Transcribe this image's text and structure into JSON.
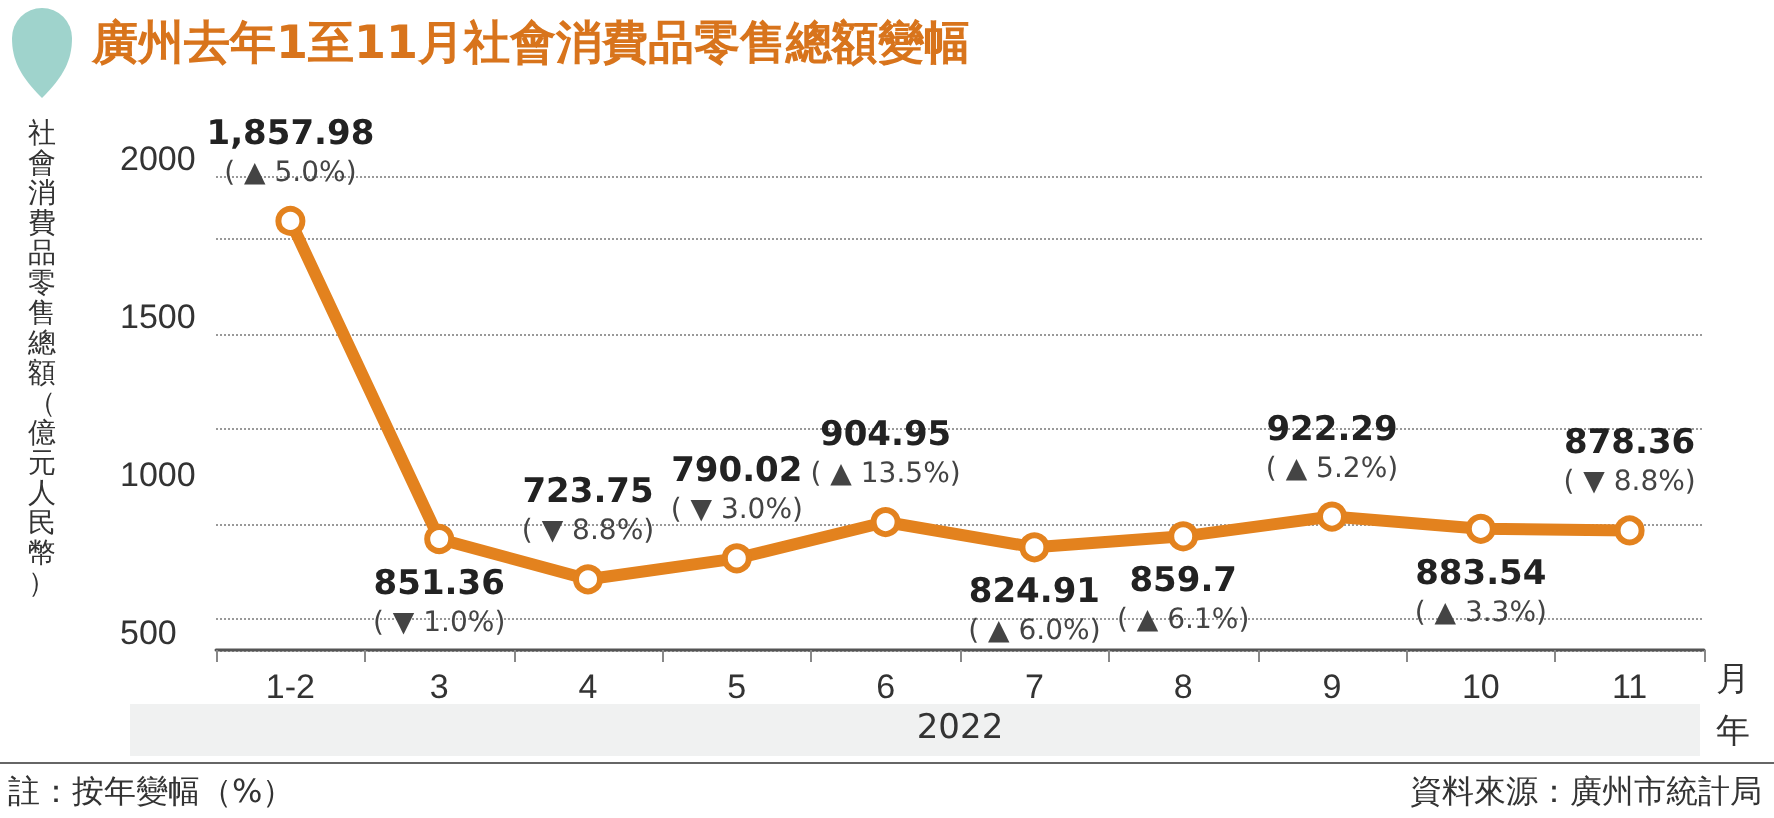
{
  "chart_data": {
    "type": "line",
    "title": "廣州去年1至11月社會消費品零售總額變幅",
    "ylabel": "社會消費品零售總額（億元人民幣）",
    "xlabel": "月",
    "categories": [
      "1-2",
      "3",
      "4",
      "5",
      "6",
      "7",
      "8",
      "9",
      "10",
      "11"
    ],
    "series": [
      {
        "color": "#e3821e",
        "values": [
          1857.98,
          851.36,
          723.75,
          790.02,
          904.95,
          824.91,
          859.7,
          922.29,
          883.54,
          878.36
        ],
        "value_labels": [
          "1,857.98\n( ▲ 5.0%)",
          "851.36\n( ▼ 1.0%)",
          "723.75\n( ▼ 8.8%)",
          "790.02\n( ▼ 3.0%)",
          "904.95\n( ▲ 13.5%)",
          "824.91\n( ▲ 6.0%)",
          "859.7\n( ▲ 6.1%)",
          "922.29\n( ▲ 5.2%)",
          "883.54\n( ▲ 3.3%)",
          "878.36\n( ▼ 8.8%)"
        ]
      }
    ],
    "ylim": [
      500,
      2000
    ],
    "yticks": [
      500,
      1000,
      1500,
      2000
    ],
    "grid": "y",
    "marker": "circle",
    "line_style": "solid",
    "annotations": [
      "2022",
      "年",
      "註：按年變幅（%）",
      "資料來源：廣州市統計局"
    ]
  }
}
